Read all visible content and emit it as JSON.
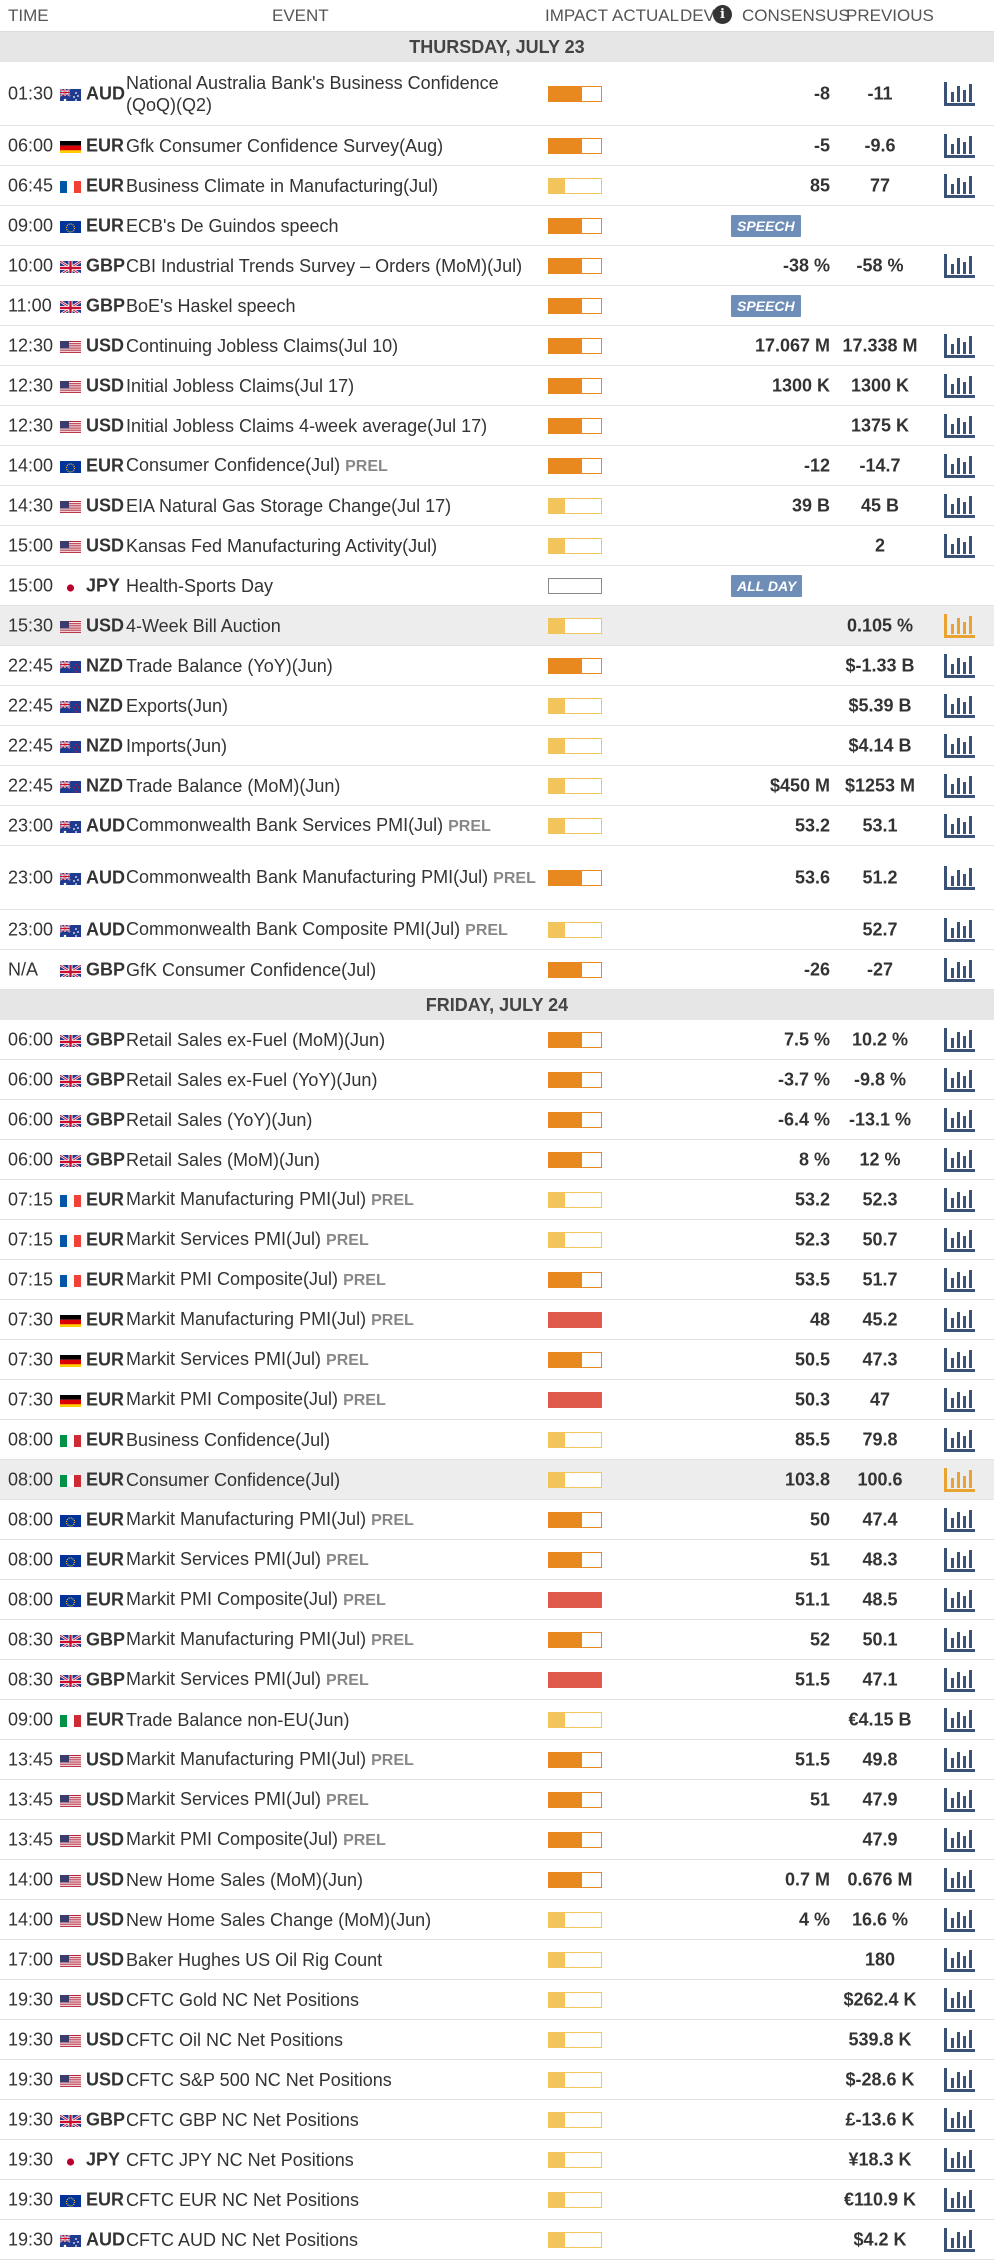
{
  "header": {
    "time": "TIME",
    "event": "EVENT",
    "impact": "IMPACT",
    "actual": "ACTUAL",
    "dev": "DEV",
    "consensus": "CONSENSUS",
    "previous": "PREVIOUS"
  },
  "colors": {
    "high": "#e05a4b",
    "medium": "#e8891f",
    "low": "#f3c45b",
    "badge": "#6e8db7",
    "chart_icon": "#3a5278",
    "chart_icon_active": "#e8a330"
  },
  "days": [
    {
      "label": "THURSDAY, JULY 23",
      "rows": [
        {
          "time": "01:30",
          "flag": "au",
          "currency": "AUD",
          "event": "National Australia Bank's Business Confidence (QoQ)(Q2)",
          "prel": "",
          "impact": "medium",
          "consensus": "-8",
          "previous": "-11",
          "badge": "",
          "tall": true
        },
        {
          "time": "06:00",
          "flag": "de",
          "currency": "EUR",
          "event": "Gfk Consumer Confidence Survey(Aug)",
          "prel": "",
          "impact": "medium",
          "consensus": "-5",
          "previous": "-9.6",
          "badge": ""
        },
        {
          "time": "06:45",
          "flag": "fr",
          "currency": "EUR",
          "event": "Business Climate in Manufacturing(Jul)",
          "prel": "",
          "impact": "low",
          "consensus": "85",
          "previous": "77",
          "badge": ""
        },
        {
          "time": "09:00",
          "flag": "eu",
          "currency": "EUR",
          "event": "ECB's De Guindos speech",
          "prel": "",
          "impact": "medium",
          "consensus": "",
          "previous": "",
          "badge": "SPEECH",
          "nochart": true
        },
        {
          "time": "10:00",
          "flag": "gb",
          "currency": "GBP",
          "event": "CBI Industrial Trends Survey – Orders (MoM)(Jul)",
          "prel": "",
          "impact": "medium",
          "consensus": "-38 %",
          "previous": "-58 %",
          "badge": ""
        },
        {
          "time": "11:00",
          "flag": "gb",
          "currency": "GBP",
          "event": "BoE's Haskel speech",
          "prel": "",
          "impact": "medium",
          "consensus": "",
          "previous": "",
          "badge": "SPEECH",
          "nochart": true
        },
        {
          "time": "12:30",
          "flag": "us",
          "currency": "USD",
          "event": "Continuing Jobless Claims(Jul 10)",
          "prel": "",
          "impact": "medium",
          "consensus": "17.067 M",
          "previous": "17.338 M",
          "badge": ""
        },
        {
          "time": "12:30",
          "flag": "us",
          "currency": "USD",
          "event": "Initial Jobless Claims(Jul 17)",
          "prel": "",
          "impact": "medium",
          "consensus": "1300 K",
          "previous": "1300 K",
          "badge": ""
        },
        {
          "time": "12:30",
          "flag": "us",
          "currency": "USD",
          "event": "Initial Jobless Claims 4-week average(Jul 17)",
          "prel": "",
          "impact": "medium",
          "consensus": "",
          "previous": "1375 K",
          "badge": ""
        },
        {
          "time": "14:00",
          "flag": "eu",
          "currency": "EUR",
          "event": "Consumer Confidence(Jul)",
          "prel": "PREL",
          "impact": "medium",
          "consensus": "-12",
          "previous": "-14.7",
          "badge": ""
        },
        {
          "time": "14:30",
          "flag": "us",
          "currency": "USD",
          "event": "EIA Natural Gas Storage Change(Jul 17)",
          "prel": "",
          "impact": "low",
          "consensus": "39 B",
          "previous": "45 B",
          "badge": ""
        },
        {
          "time": "15:00",
          "flag": "us",
          "currency": "USD",
          "event": "Kansas Fed Manufacturing Activity(Jul)",
          "prel": "",
          "impact": "low",
          "consensus": "",
          "previous": "2",
          "badge": ""
        },
        {
          "time": "15:00",
          "flag": "jp",
          "currency": "JPY",
          "event": "Health-Sports Day",
          "prel": "",
          "impact": "none",
          "consensus": "",
          "previous": "",
          "badge": "ALL DAY",
          "nochart": true
        },
        {
          "time": "15:30",
          "flag": "us",
          "currency": "USD",
          "event": "4-Week Bill Auction",
          "prel": "",
          "impact": "low",
          "consensus": "",
          "previous": "0.105 %",
          "badge": "",
          "highlight": true
        },
        {
          "time": "22:45",
          "flag": "nz",
          "currency": "NZD",
          "event": "Trade Balance (YoY)(Jun)",
          "prel": "",
          "impact": "medium",
          "consensus": "",
          "previous": "$-1.33 B",
          "badge": ""
        },
        {
          "time": "22:45",
          "flag": "nz",
          "currency": "NZD",
          "event": "Exports(Jun)",
          "prel": "",
          "impact": "low",
          "consensus": "",
          "previous": "$5.39 B",
          "badge": ""
        },
        {
          "time": "22:45",
          "flag": "nz",
          "currency": "NZD",
          "event": "Imports(Jun)",
          "prel": "",
          "impact": "low",
          "consensus": "",
          "previous": "$4.14 B",
          "badge": ""
        },
        {
          "time": "22:45",
          "flag": "nz",
          "currency": "NZD",
          "event": "Trade Balance (MoM)(Jun)",
          "prel": "",
          "impact": "low",
          "consensus": "$450 M",
          "previous": "$1253 M",
          "badge": ""
        },
        {
          "time": "23:00",
          "flag": "au",
          "currency": "AUD",
          "event": "Commonwealth Bank Services PMI(Jul)",
          "prel": "PREL",
          "impact": "low",
          "consensus": "53.2",
          "previous": "53.1",
          "badge": ""
        },
        {
          "time": "23:00",
          "flag": "au",
          "currency": "AUD",
          "event": "Commonwealth Bank Manufacturing PMI(Jul)",
          "prel": "PREL",
          "impact": "medium",
          "consensus": "53.6",
          "previous": "51.2",
          "badge": "",
          "tall": true
        },
        {
          "time": "23:00",
          "flag": "au",
          "currency": "AUD",
          "event": "Commonwealth Bank Composite PMI(Jul)",
          "prel": "PREL",
          "impact": "low",
          "consensus": "",
          "previous": "52.7",
          "badge": ""
        },
        {
          "time": "N/A",
          "flag": "gb",
          "currency": "GBP",
          "event": "GfK Consumer Confidence(Jul)",
          "prel": "",
          "impact": "medium",
          "consensus": "-26",
          "previous": "-27",
          "badge": ""
        }
      ]
    },
    {
      "label": "FRIDAY, JULY 24",
      "rows": [
        {
          "time": "06:00",
          "flag": "gb",
          "currency": "GBP",
          "event": "Retail Sales ex-Fuel (MoM)(Jun)",
          "prel": "",
          "impact": "medium",
          "consensus": "7.5 %",
          "previous": "10.2 %",
          "badge": ""
        },
        {
          "time": "06:00",
          "flag": "gb",
          "currency": "GBP",
          "event": "Retail Sales ex-Fuel (YoY)(Jun)",
          "prel": "",
          "impact": "medium",
          "consensus": "-3.7 %",
          "previous": "-9.8 %",
          "badge": ""
        },
        {
          "time": "06:00",
          "flag": "gb",
          "currency": "GBP",
          "event": "Retail Sales (YoY)(Jun)",
          "prel": "",
          "impact": "medium",
          "consensus": "-6.4 %",
          "previous": "-13.1 %",
          "badge": ""
        },
        {
          "time": "06:00",
          "flag": "gb",
          "currency": "GBP",
          "event": "Retail Sales (MoM)(Jun)",
          "prel": "",
          "impact": "medium",
          "consensus": "8 %",
          "previous": "12 %",
          "badge": ""
        },
        {
          "time": "07:15",
          "flag": "fr",
          "currency": "EUR",
          "event": "Markit Manufacturing PMI(Jul)",
          "prel": "PREL",
          "impact": "low",
          "consensus": "53.2",
          "previous": "52.3",
          "badge": ""
        },
        {
          "time": "07:15",
          "flag": "fr",
          "currency": "EUR",
          "event": "Markit Services PMI(Jul)",
          "prel": "PREL",
          "impact": "low",
          "consensus": "52.3",
          "previous": "50.7",
          "badge": ""
        },
        {
          "time": "07:15",
          "flag": "fr",
          "currency": "EUR",
          "event": "Markit PMI Composite(Jul)",
          "prel": "PREL",
          "impact": "medium",
          "consensus": "53.5",
          "previous": "51.7",
          "badge": ""
        },
        {
          "time": "07:30",
          "flag": "de",
          "currency": "EUR",
          "event": "Markit Manufacturing PMI(Jul)",
          "prel": "PREL",
          "impact": "high",
          "consensus": "48",
          "previous": "45.2",
          "badge": ""
        },
        {
          "time": "07:30",
          "flag": "de",
          "currency": "EUR",
          "event": "Markit Services PMI(Jul)",
          "prel": "PREL",
          "impact": "medium",
          "consensus": "50.5",
          "previous": "47.3",
          "badge": ""
        },
        {
          "time": "07:30",
          "flag": "de",
          "currency": "EUR",
          "event": "Markit PMI Composite(Jul)",
          "prel": "PREL",
          "impact": "high",
          "consensus": "50.3",
          "previous": "47",
          "badge": ""
        },
        {
          "time": "08:00",
          "flag": "it",
          "currency": "EUR",
          "event": "Business Confidence(Jul)",
          "prel": "",
          "impact": "low",
          "consensus": "85.5",
          "previous": "79.8",
          "badge": ""
        },
        {
          "time": "08:00",
          "flag": "it",
          "currency": "EUR",
          "event": "Consumer Confidence(Jul)",
          "prel": "",
          "impact": "low",
          "consensus": "103.8",
          "previous": "100.6",
          "badge": "",
          "highlight": true
        },
        {
          "time": "08:00",
          "flag": "eu",
          "currency": "EUR",
          "event": "Markit Manufacturing PMI(Jul)",
          "prel": "PREL",
          "impact": "medium",
          "consensus": "50",
          "previous": "47.4",
          "badge": ""
        },
        {
          "time": "08:00",
          "flag": "eu",
          "currency": "EUR",
          "event": "Markit Services PMI(Jul)",
          "prel": "PREL",
          "impact": "medium",
          "consensus": "51",
          "previous": "48.3",
          "badge": ""
        },
        {
          "time": "08:00",
          "flag": "eu",
          "currency": "EUR",
          "event": "Markit PMI Composite(Jul)",
          "prel": "PREL",
          "impact": "high",
          "consensus": "51.1",
          "previous": "48.5",
          "badge": ""
        },
        {
          "time": "08:30",
          "flag": "gb",
          "currency": "GBP",
          "event": "Markit Manufacturing PMI(Jul)",
          "prel": "PREL",
          "impact": "medium",
          "consensus": "52",
          "previous": "50.1",
          "badge": ""
        },
        {
          "time": "08:30",
          "flag": "gb",
          "currency": "GBP",
          "event": "Markit Services PMI(Jul)",
          "prel": "PREL",
          "impact": "high",
          "consensus": "51.5",
          "previous": "47.1",
          "badge": ""
        },
        {
          "time": "09:00",
          "flag": "it",
          "currency": "EUR",
          "event": "Trade Balance non-EU(Jun)",
          "prel": "",
          "impact": "low",
          "consensus": "",
          "previous": "€4.15 B",
          "badge": ""
        },
        {
          "time": "13:45",
          "flag": "us",
          "currency": "USD",
          "event": "Markit Manufacturing PMI(Jul)",
          "prel": "PREL",
          "impact": "medium",
          "consensus": "51.5",
          "previous": "49.8",
          "badge": ""
        },
        {
          "time": "13:45",
          "flag": "us",
          "currency": "USD",
          "event": "Markit Services PMI(Jul)",
          "prel": "PREL",
          "impact": "medium",
          "consensus": "51",
          "previous": "47.9",
          "badge": ""
        },
        {
          "time": "13:45",
          "flag": "us",
          "currency": "USD",
          "event": "Markit PMI Composite(Jul)",
          "prel": "PREL",
          "impact": "medium",
          "consensus": "",
          "previous": "47.9",
          "badge": ""
        },
        {
          "time": "14:00",
          "flag": "us",
          "currency": "USD",
          "event": "New Home Sales (MoM)(Jun)",
          "prel": "",
          "impact": "medium",
          "consensus": "0.7 M",
          "previous": "0.676 M",
          "badge": ""
        },
        {
          "time": "14:00",
          "flag": "us",
          "currency": "USD",
          "event": "New Home Sales Change (MoM)(Jun)",
          "prel": "",
          "impact": "low",
          "consensus": "4 %",
          "previous": "16.6 %",
          "badge": ""
        },
        {
          "time": "17:00",
          "flag": "us",
          "currency": "USD",
          "event": "Baker Hughes US Oil Rig Count",
          "prel": "",
          "impact": "low",
          "consensus": "",
          "previous": "180",
          "badge": ""
        },
        {
          "time": "19:30",
          "flag": "us",
          "currency": "USD",
          "event": "CFTC Gold NC Net Positions",
          "prel": "",
          "impact": "low",
          "consensus": "",
          "previous": "$262.4 K",
          "badge": ""
        },
        {
          "time": "19:30",
          "flag": "us",
          "currency": "USD",
          "event": "CFTC Oil NC Net Positions",
          "prel": "",
          "impact": "low",
          "consensus": "",
          "previous": "539.8 K",
          "badge": ""
        },
        {
          "time": "19:30",
          "flag": "us",
          "currency": "USD",
          "event": "CFTC S&P 500 NC Net Positions",
          "prel": "",
          "impact": "low",
          "consensus": "",
          "previous": "$-28.6 K",
          "badge": ""
        },
        {
          "time": "19:30",
          "flag": "gb",
          "currency": "GBP",
          "event": "CFTC GBP NC Net Positions",
          "prel": "",
          "impact": "low",
          "consensus": "",
          "previous": "£-13.6 K",
          "badge": ""
        },
        {
          "time": "19:30",
          "flag": "jp",
          "currency": "JPY",
          "event": "CFTC JPY NC Net Positions",
          "prel": "",
          "impact": "low",
          "consensus": "",
          "previous": "¥18.3 K",
          "badge": ""
        },
        {
          "time": "19:30",
          "flag": "eu",
          "currency": "EUR",
          "event": "CFTC EUR NC Net Positions",
          "prel": "",
          "impact": "low",
          "consensus": "",
          "previous": "€110.9 K",
          "badge": ""
        },
        {
          "time": "19:30",
          "flag": "au",
          "currency": "AUD",
          "event": "CFTC AUD NC Net Positions",
          "prel": "",
          "impact": "low",
          "consensus": "",
          "previous": "$4.2 K",
          "badge": ""
        }
      ]
    }
  ]
}
